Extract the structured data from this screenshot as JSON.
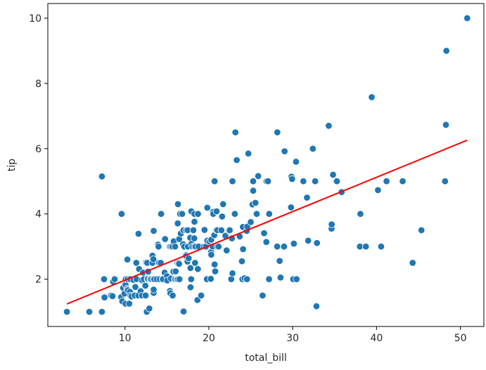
{
  "chart_data": {
    "type": "scatter",
    "xlabel": "total_bill",
    "ylabel": "tip",
    "xlim": [
      0.8,
      52.8
    ],
    "ylim": [
      0.55,
      10.45
    ],
    "xticks": [
      10,
      20,
      30,
      40,
      50
    ],
    "yticks": [
      2,
      4,
      6,
      8,
      10
    ],
    "grid": false,
    "colors": {
      "points": "#1f77b4",
      "point_edge": "#ffffff",
      "regression_line": "#ff0000",
      "axes": "#000000"
    },
    "points": [
      [
        3.07,
        1.0
      ],
      [
        5.75,
        1.0
      ],
      [
        7.25,
        1.0
      ],
      [
        7.25,
        5.15
      ],
      [
        7.51,
        2.0
      ],
      [
        7.56,
        1.44
      ],
      [
        8.35,
        1.5
      ],
      [
        8.52,
        1.48
      ],
      [
        8.58,
        1.92
      ],
      [
        8.77,
        2.0
      ],
      [
        9.6,
        4.0
      ],
      [
        9.55,
        1.45
      ],
      [
        9.68,
        1.32
      ],
      [
        9.78,
        1.73
      ],
      [
        9.94,
        1.56
      ],
      [
        10.07,
        1.83
      ],
      [
        10.07,
        1.25
      ],
      [
        10.09,
        2.0
      ],
      [
        10.27,
        1.71
      ],
      [
        10.29,
        2.6
      ],
      [
        10.33,
        1.67
      ],
      [
        10.33,
        2.0
      ],
      [
        10.34,
        1.66
      ],
      [
        10.34,
        2.0
      ],
      [
        10.51,
        1.25
      ],
      [
        10.59,
        1.61
      ],
      [
        10.63,
        2.0
      ],
      [
        10.65,
        1.5
      ],
      [
        10.77,
        1.47
      ],
      [
        11.02,
        1.98
      ],
      [
        11.17,
        1.5
      ],
      [
        11.24,
        1.76
      ],
      [
        11.35,
        2.5
      ],
      [
        11.38,
        2.0
      ],
      [
        11.59,
        1.5
      ],
      [
        11.61,
        3.39
      ],
      [
        11.69,
        2.31
      ],
      [
        11.87,
        1.63
      ],
      [
        12.02,
        1.97
      ],
      [
        12.03,
        1.5
      ],
      [
        12.16,
        2.2
      ],
      [
        12.26,
        2.0
      ],
      [
        12.43,
        1.8
      ],
      [
        12.46,
        1.5
      ],
      [
        12.48,
        2.52
      ],
      [
        12.54,
        2.5
      ],
      [
        12.6,
        1.0
      ],
      [
        12.66,
        2.5
      ],
      [
        12.69,
        2.0
      ],
      [
        12.74,
        2.01
      ],
      [
        12.76,
        2.23
      ],
      [
        12.9,
        1.1
      ],
      [
        13.0,
        2.0
      ],
      [
        13.03,
        2.0
      ],
      [
        13.13,
        2.0
      ],
      [
        13.27,
        2.5
      ],
      [
        13.28,
        2.72
      ],
      [
        13.37,
        2.0
      ],
      [
        13.39,
        2.61
      ],
      [
        13.42,
        3.48
      ],
      [
        13.42,
        1.58
      ],
      [
        13.42,
        1.68
      ],
      [
        13.51,
        2.0
      ],
      [
        13.81,
        2.0
      ],
      [
        13.94,
        3.06
      ],
      [
        14.0,
        3.0
      ],
      [
        14.07,
        2.5
      ],
      [
        14.15,
        2.0
      ],
      [
        14.26,
        2.5
      ],
      [
        14.31,
        4.0
      ],
      [
        14.48,
        2.0
      ],
      [
        14.52,
        2.0
      ],
      [
        14.73,
        2.2
      ],
      [
        14.78,
        3.23
      ],
      [
        15.01,
        2.09
      ],
      [
        15.04,
        1.96
      ],
      [
        15.36,
        1.64
      ],
      [
        15.38,
        3.0
      ],
      [
        15.42,
        1.57
      ],
      [
        15.48,
        2.02
      ],
      [
        15.53,
        3.0
      ],
      [
        15.69,
        1.5
      ],
      [
        15.69,
        3.0
      ],
      [
        15.77,
        2.23
      ],
      [
        15.81,
        3.16
      ],
      [
        15.95,
        2.0
      ],
      [
        15.98,
        3.0
      ],
      [
        16.0,
        2.0
      ],
      [
        16.04,
        2.24
      ],
      [
        16.21,
        2.0
      ],
      [
        16.27,
        2.5
      ],
      [
        16.29,
        3.71
      ],
      [
        16.31,
        2.0
      ],
      [
        16.32,
        4.3
      ],
      [
        16.4,
        2.5
      ],
      [
        16.45,
        2.47
      ],
      [
        16.47,
        3.23
      ],
      [
        16.49,
        2.0
      ],
      [
        16.58,
        4.0
      ],
      [
        16.66,
        3.4
      ],
      [
        16.82,
        4.0
      ],
      [
        16.93,
        3.07
      ],
      [
        16.97,
        3.5
      ],
      [
        16.99,
        1.01
      ],
      [
        17.07,
        3.0
      ],
      [
        17.26,
        2.74
      ],
      [
        17.29,
        2.71
      ],
      [
        17.31,
        3.5
      ],
      [
        17.46,
        2.54
      ],
      [
        17.47,
        3.5
      ],
      [
        17.51,
        3.0
      ],
      [
        17.59,
        2.64
      ],
      [
        17.78,
        3.27
      ],
      [
        17.81,
        2.34
      ],
      [
        17.82,
        1.75
      ],
      [
        17.89,
        2.0
      ],
      [
        17.92,
        4.08
      ],
      [
        17.92,
        3.08
      ],
      [
        18.04,
        3.0
      ],
      [
        18.15,
        3.5
      ],
      [
        18.24,
        3.76
      ],
      [
        18.26,
        3.25
      ],
      [
        18.28,
        4.0
      ],
      [
        18.29,
        3.76
      ],
      [
        18.29,
        3.0
      ],
      [
        18.35,
        2.5
      ],
      [
        18.43,
        3.0
      ],
      [
        18.64,
        1.36
      ],
      [
        18.69,
        2.31
      ],
      [
        18.71,
        4.0
      ],
      [
        18.78,
        3.0
      ],
      [
        19.08,
        1.5
      ],
      [
        19.44,
        3.0
      ],
      [
        19.49,
        3.51
      ],
      [
        19.65,
        3.0
      ],
      [
        19.77,
        2.0
      ],
      [
        19.81,
        4.19
      ],
      [
        19.82,
        3.18
      ],
      [
        20.08,
        3.15
      ],
      [
        20.23,
        2.01
      ],
      [
        20.27,
        2.83
      ],
      [
        20.29,
        3.21
      ],
      [
        20.29,
        2.75
      ],
      [
        20.45,
        3.0
      ],
      [
        20.49,
        4.06
      ],
      [
        20.53,
        4.0
      ],
      [
        20.65,
        3.35
      ],
      [
        20.69,
        2.45
      ],
      [
        20.69,
        5.0
      ],
      [
        20.76,
        2.24
      ],
      [
        20.9,
        3.5
      ],
      [
        20.92,
        4.08
      ],
      [
        21.01,
        3.5
      ],
      [
        21.01,
        3.0
      ],
      [
        21.16,
        3.0
      ],
      [
        21.5,
        3.5
      ],
      [
        21.58,
        3.92
      ],
      [
        21.7,
        4.3
      ],
      [
        21.98,
        3.33
      ],
      [
        22.12,
        2.88
      ],
      [
        22.42,
        3.48
      ],
      [
        22.49,
        3.5
      ],
      [
        22.67,
        2.0
      ],
      [
        22.75,
        3.25
      ],
      [
        22.82,
        2.18
      ],
      [
        22.82,
        5.0
      ],
      [
        23.1,
        4.0
      ],
      [
        23.17,
        6.5
      ],
      [
        23.33,
        5.65
      ],
      [
        23.68,
        3.31
      ],
      [
        23.95,
        2.55
      ],
      [
        24.01,
        2.0
      ],
      [
        24.06,
        3.6
      ],
      [
        24.08,
        2.92
      ],
      [
        24.27,
        2.03
      ],
      [
        24.52,
        3.48
      ],
      [
        24.55,
        2.0
      ],
      [
        24.59,
        3.61
      ],
      [
        24.71,
        5.85
      ],
      [
        25.0,
        3.75
      ],
      [
        25.21,
        4.29
      ],
      [
        25.28,
        5.0
      ],
      [
        25.29,
        4.71
      ],
      [
        25.56,
        4.34
      ],
      [
        25.71,
        4.0
      ],
      [
        25.89,
        5.16
      ],
      [
        26.41,
        1.5
      ],
      [
        26.59,
        3.41
      ],
      [
        26.86,
        3.14
      ],
      [
        26.88,
        5.0
      ],
      [
        27.05,
        5.0
      ],
      [
        27.18,
        2.0
      ],
      [
        27.2,
        4.0
      ],
      [
        28.15,
        3.0
      ],
      [
        28.17,
        6.5
      ],
      [
        28.44,
        2.56
      ],
      [
        28.55,
        2.05
      ],
      [
        28.97,
        3.0
      ],
      [
        29.03,
        5.92
      ],
      [
        29.8,
        4.2
      ],
      [
        29.85,
        5.14
      ],
      [
        29.93,
        5.07
      ],
      [
        30.06,
        2.0
      ],
      [
        30.14,
        3.09
      ],
      [
        30.4,
        5.6
      ],
      [
        30.46,
        2.0
      ],
      [
        31.27,
        5.0
      ],
      [
        31.71,
        4.5
      ],
      [
        31.85,
        3.18
      ],
      [
        32.4,
        6.0
      ],
      [
        32.68,
        5.0
      ],
      [
        32.83,
        1.17
      ],
      [
        32.9,
        3.11
      ],
      [
        34.3,
        6.7
      ],
      [
        34.63,
        3.55
      ],
      [
        34.65,
        3.68
      ],
      [
        34.81,
        5.2
      ],
      [
        35.26,
        5.0
      ],
      [
        35.83,
        4.67
      ],
      [
        38.01,
        3.0
      ],
      [
        38.07,
        4.0
      ],
      [
        38.73,
        3.0
      ],
      [
        39.42,
        7.58
      ],
      [
        40.17,
        4.73
      ],
      [
        40.55,
        3.0
      ],
      [
        41.19,
        5.0
      ],
      [
        43.11,
        5.0
      ],
      [
        44.3,
        2.5
      ],
      [
        45.35,
        3.5
      ],
      [
        48.17,
        5.0
      ],
      [
        48.27,
        6.73
      ],
      [
        48.33,
        9.0
      ],
      [
        50.81,
        10.0
      ]
    ],
    "regression": {
      "x": [
        3.07,
        50.81
      ],
      "y": [
        1.24,
        6.26
      ]
    }
  }
}
